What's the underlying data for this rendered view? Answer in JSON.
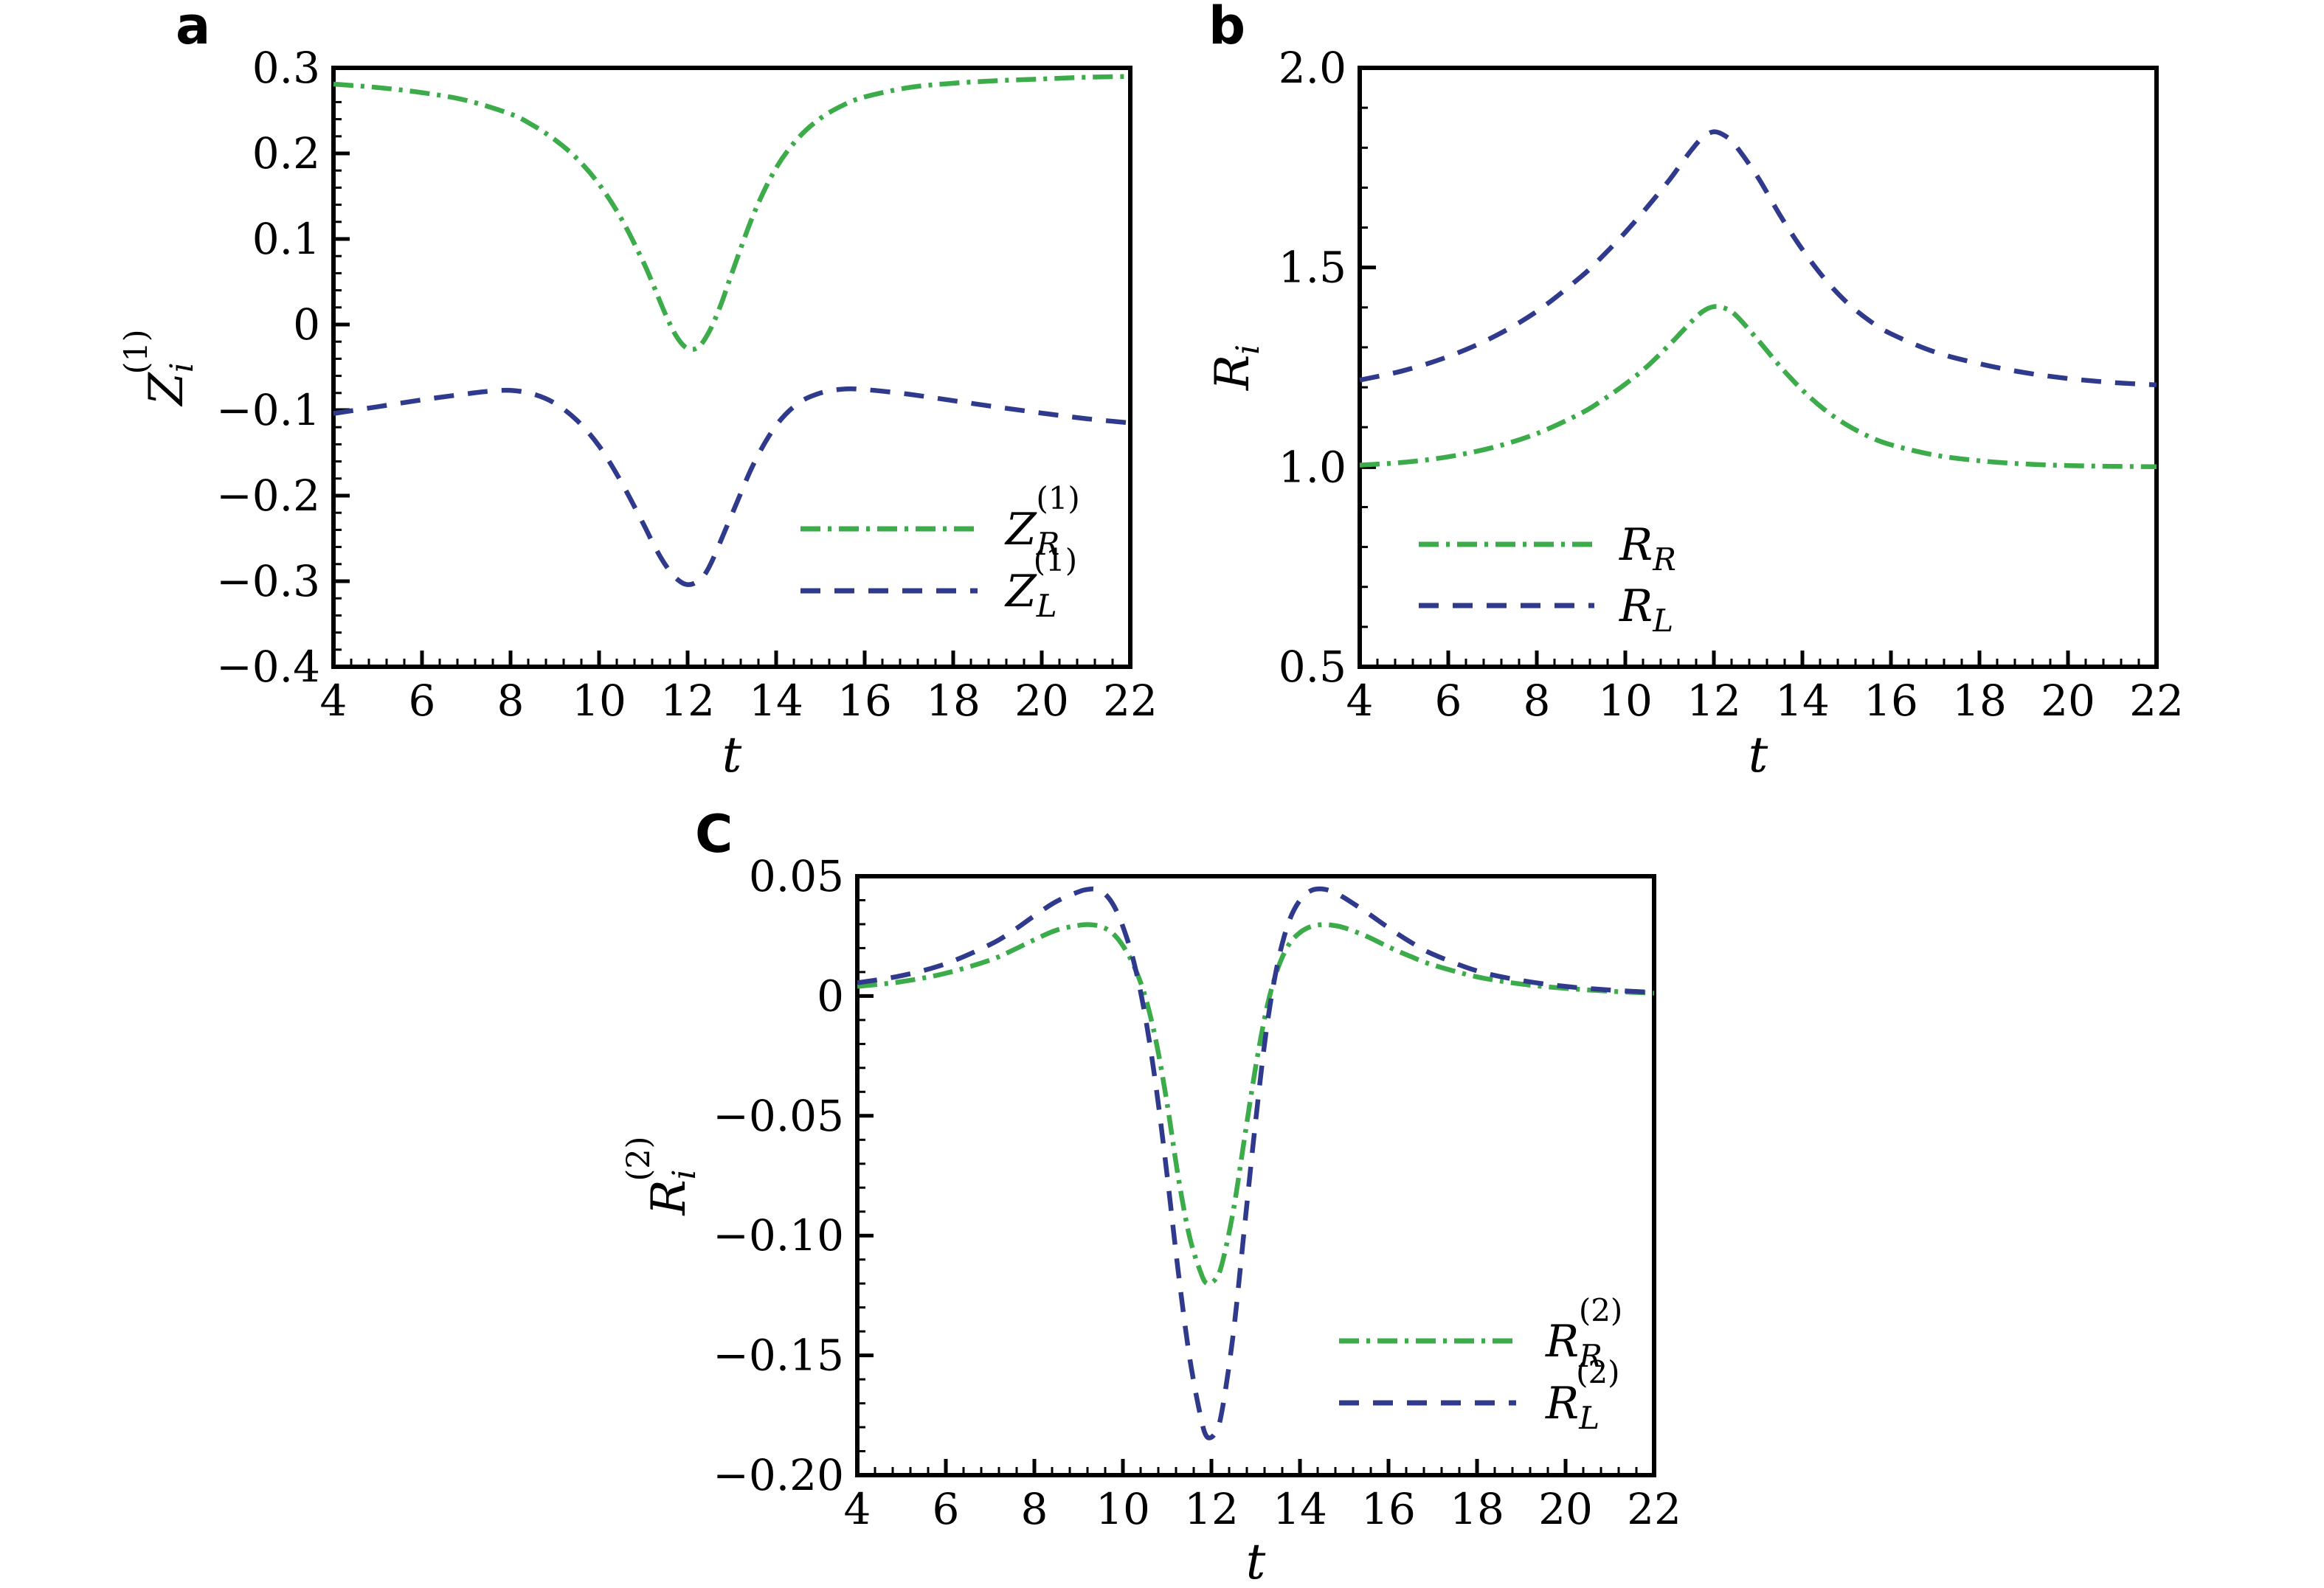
{
  "figure": {
    "background": "#ffffff",
    "text_color": "#000000",
    "panel_labels": [
      {
        "id": "a",
        "text": "a"
      },
      {
        "id": "b",
        "text": "b"
      },
      {
        "id": "c",
        "text": "C"
      }
    ]
  },
  "chart_data": [
    {
      "type": "line",
      "panel": "a",
      "panel_label": "a",
      "title": "",
      "xlabel": "t",
      "ylabel": {
        "base": "Z",
        "sub": "i",
        "sup": "(1)"
      },
      "xlim": [
        4,
        22
      ],
      "ylim": [
        -0.4,
        0.3
      ],
      "xticks": [
        4,
        6,
        8,
        10,
        12,
        14,
        16,
        18,
        20,
        22
      ],
      "xtick_labels": [
        "4",
        "6",
        "8",
        "10",
        "12",
        "14",
        "16",
        "18",
        "20",
        "22"
      ],
      "yticks": [
        0.3,
        0.2,
        0.1,
        0,
        -0.1,
        -0.2,
        -0.3,
        -0.4
      ],
      "ytick_labels": [
        "0.3",
        "0.2",
        "0.1",
        "0",
        "−0.1",
        "−0.2",
        "−0.3",
        "−0.4"
      ],
      "x_minor_step": 0.4,
      "y_minor_step": 0.02,
      "grid": false,
      "legend_position": "lower right inside",
      "series": [
        {
          "name": "Z_R_1",
          "legend": {
            "base": "Z",
            "sub": "R",
            "sup": "(1)"
          },
          "color": "#3cab4a",
          "line_style": "dashdot",
          "x": [
            4,
            5,
            6,
            7,
            8,
            8.5,
            9,
            9.5,
            10,
            10.5,
            11,
            11.25,
            11.5,
            11.75,
            12,
            12.25,
            12.5,
            12.75,
            13,
            13.5,
            14,
            14.5,
            15,
            15.5,
            16,
            17,
            18,
            19,
            20,
            21,
            22
          ],
          "y": [
            0.281,
            0.277,
            0.271,
            0.262,
            0.246,
            0.233,
            0.216,
            0.194,
            0.164,
            0.124,
            0.073,
            0.043,
            0.012,
            -0.014,
            -0.028,
            -0.026,
            -0.007,
            0.023,
            0.06,
            0.13,
            0.183,
            0.218,
            0.241,
            0.256,
            0.266,
            0.277,
            0.282,
            0.285,
            0.287,
            0.289,
            0.29
          ]
        },
        {
          "name": "Z_L_1",
          "legend": {
            "base": "Z",
            "sub": "L",
            "sup": "(1)"
          },
          "color": "#2f3a8d",
          "line_style": "dashed",
          "x": [
            4,
            5,
            6,
            7,
            7.5,
            8,
            8.5,
            9,
            9.5,
            10,
            10.5,
            11,
            11.25,
            11.5,
            11.75,
            12,
            12.25,
            12.5,
            13,
            13.5,
            14,
            14.5,
            15,
            15.5,
            16,
            17,
            18,
            19,
            20,
            21,
            22
          ],
          "y": [
            -0.104,
            -0.096,
            -0.088,
            -0.081,
            -0.078,
            -0.077,
            -0.081,
            -0.092,
            -0.112,
            -0.142,
            -0.184,
            -0.233,
            -0.259,
            -0.281,
            -0.297,
            -0.304,
            -0.299,
            -0.282,
            -0.222,
            -0.162,
            -0.118,
            -0.092,
            -0.08,
            -0.0755,
            -0.076,
            -0.0815,
            -0.089,
            -0.0965,
            -0.1035,
            -0.11,
            -0.115
          ]
        }
      ]
    },
    {
      "type": "line",
      "panel": "b",
      "panel_label": "b",
      "title": "",
      "xlabel": "t",
      "ylabel": {
        "base": "R",
        "sub": "i",
        "sup": ""
      },
      "xlim": [
        4,
        22
      ],
      "ylim": [
        0.5,
        2.0
      ],
      "xticks": [
        4,
        6,
        8,
        10,
        12,
        14,
        16,
        18,
        20,
        22
      ],
      "xtick_labels": [
        "4",
        "6",
        "8",
        "10",
        "12",
        "14",
        "16",
        "18",
        "20",
        "22"
      ],
      "yticks": [
        2.0,
        1.5,
        1.0,
        0.5
      ],
      "ytick_labels": [
        "2.0",
        "1.5",
        "1.0",
        "0.5"
      ],
      "x_minor_step": 0.4,
      "y_minor_step": 0.1,
      "grid": false,
      "legend_position": "lower left inside",
      "series": [
        {
          "name": "R_R",
          "legend": {
            "base": "R",
            "sub": "R",
            "sup": ""
          },
          "color": "#3cab4a",
          "line_style": "dashdot",
          "x": [
            4,
            5,
            6,
            7,
            8,
            9,
            9.5,
            10,
            10.5,
            11,
            11.25,
            11.5,
            11.75,
            12,
            12.25,
            12.5,
            13,
            13.5,
            14,
            14.5,
            15,
            15.5,
            16,
            17,
            18,
            19,
            20,
            21,
            22
          ],
          "y": [
            1.005,
            1.012,
            1.026,
            1.049,
            1.084,
            1.135,
            1.169,
            1.208,
            1.253,
            1.307,
            1.336,
            1.365,
            1.39,
            1.402,
            1.398,
            1.38,
            1.318,
            1.252,
            1.193,
            1.144,
            1.106,
            1.077,
            1.056,
            1.03,
            1.016,
            1.008,
            1.004,
            1.002,
            1.001
          ]
        },
        {
          "name": "R_L",
          "legend": {
            "base": "R",
            "sub": "L",
            "sup": ""
          },
          "color": "#2f3a8d",
          "line_style": "dashed",
          "x": [
            4,
            5,
            6,
            7,
            8,
            9,
            9.5,
            10,
            10.5,
            11,
            11.25,
            11.5,
            11.75,
            12,
            12.25,
            12.5,
            13,
            13.5,
            14,
            14.5,
            15,
            15.5,
            16,
            17,
            18,
            19,
            20,
            21,
            22
          ],
          "y": [
            1.218,
            1.242,
            1.277,
            1.325,
            1.39,
            1.477,
            1.53,
            1.588,
            1.652,
            1.72,
            1.758,
            1.795,
            1.826,
            1.84,
            1.83,
            1.804,
            1.725,
            1.63,
            1.545,
            1.472,
            1.413,
            1.368,
            1.334,
            1.288,
            1.259,
            1.237,
            1.222,
            1.212,
            1.206
          ]
        }
      ]
    },
    {
      "type": "line",
      "panel": "c",
      "panel_label": "C",
      "title": "",
      "xlabel": "t",
      "ylabel": {
        "base": "R",
        "sub": "i",
        "sup": "(2)"
      },
      "xlim": [
        4,
        22
      ],
      "ylim": [
        -0.2,
        0.05
      ],
      "xticks": [
        4,
        6,
        8,
        10,
        12,
        14,
        16,
        18,
        20,
        22
      ],
      "xtick_labels": [
        "4",
        "6",
        "8",
        "10",
        "12",
        "14",
        "16",
        "18",
        "20",
        "22"
      ],
      "yticks": [
        0.05,
        0,
        -0.05,
        -0.1,
        -0.15,
        -0.2
      ],
      "ytick_labels": [
        "0.05",
        "0",
        "−0.05",
        "−0.10",
        "−0.15",
        "−0.20"
      ],
      "x_minor_step": 0.4,
      "y_minor_step": 0.01,
      "grid": false,
      "legend_position": "lower right inside",
      "series": [
        {
          "name": "R_R_2",
          "legend": {
            "base": "R",
            "sub": "R",
            "sup": "(2)"
          },
          "color": "#3cab4a",
          "line_style": "dashdot",
          "x": [
            4,
            5,
            6,
            7,
            7.5,
            8,
            8.5,
            9,
            9.25,
            9.5,
            9.75,
            10,
            10.25,
            10.5,
            10.75,
            11,
            11.25,
            11.5,
            11.75,
            11.9,
            12.1,
            12.25,
            12.5,
            12.75,
            13,
            13.25,
            13.5,
            13.75,
            14,
            14.25,
            14.5,
            14.75,
            15,
            15.5,
            16,
            16.5,
            17,
            18,
            19,
            20,
            21,
            22
          ],
          "y": [
            0.004,
            0.006,
            0.0095,
            0.015,
            0.019,
            0.0235,
            0.0275,
            0.0295,
            0.0298,
            0.029,
            0.0265,
            0.021,
            0.0125,
            0.0,
            -0.019,
            -0.045,
            -0.0755,
            -0.1,
            -0.115,
            -0.12,
            -0.118,
            -0.111,
            -0.089,
            -0.059,
            -0.0295,
            -0.005,
            0.0115,
            0.0215,
            0.0265,
            0.029,
            0.0298,
            0.0295,
            0.0285,
            0.025,
            0.0205,
            0.0165,
            0.013,
            0.008,
            0.005,
            0.0032,
            0.002,
            0.0012
          ]
        },
        {
          "name": "R_L_2",
          "legend": {
            "base": "R",
            "sub": "L",
            "sup": "(2)"
          },
          "color": "#2f3a8d",
          "line_style": "dashed",
          "x": [
            4,
            5,
            6,
            7,
            7.5,
            8,
            8.5,
            9,
            9.2,
            9.4,
            9.6,
            9.8,
            10,
            10.25,
            10.5,
            10.75,
            11,
            11.25,
            11.5,
            11.75,
            11.9,
            12.1,
            12.25,
            12.5,
            12.75,
            13,
            13.25,
            13.5,
            13.75,
            14,
            14.25,
            14.5,
            14.75,
            15,
            15.5,
            16,
            16.5,
            17,
            18,
            19,
            20,
            21,
            22
          ],
          "y": [
            0.0055,
            0.0085,
            0.0135,
            0.0215,
            0.027,
            0.0335,
            0.0395,
            0.0435,
            0.0445,
            0.0445,
            0.0425,
            0.0375,
            0.029,
            0.014,
            -0.008,
            -0.038,
            -0.075,
            -0.115,
            -0.15,
            -0.175,
            -0.184,
            -0.182,
            -0.172,
            -0.14,
            -0.096,
            -0.052,
            -0.013,
            0.014,
            0.031,
            0.04,
            0.044,
            0.0447,
            0.0435,
            0.041,
            0.035,
            0.0285,
            0.0225,
            0.0175,
            0.0105,
            0.0065,
            0.004,
            0.0025,
            0.0015
          ]
        }
      ]
    }
  ]
}
